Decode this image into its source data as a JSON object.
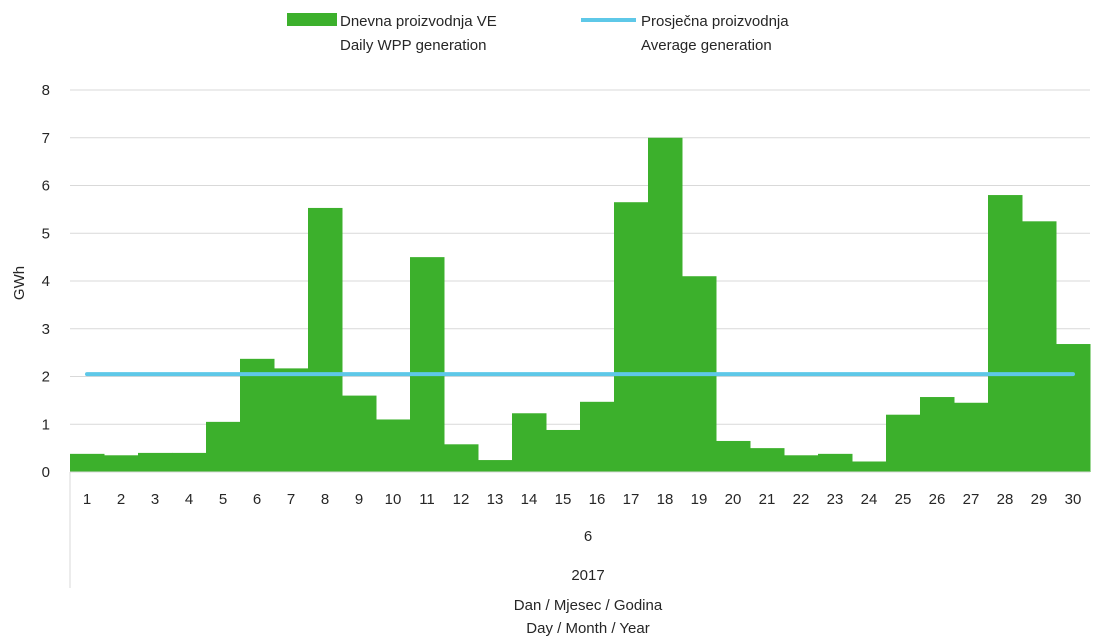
{
  "chart_data": {
    "type": "bar",
    "title": "",
    "ylabel": "GWh",
    "xlabel_lines": [
      "Dan / Mjesec / Godina",
      "Day / Month / Year"
    ],
    "month_label": "6",
    "year_label": "2017",
    "ylim": [
      0,
      8
    ],
    "yticks": [
      "0",
      "1",
      "2",
      "3",
      "4",
      "5",
      "6",
      "7",
      "8"
    ],
    "grid": true,
    "legend_position": "top",
    "categories": [
      "1",
      "2",
      "3",
      "4",
      "5",
      "6",
      "7",
      "8",
      "9",
      "10",
      "11",
      "12",
      "13",
      "14",
      "15",
      "16",
      "17",
      "18",
      "19",
      "20",
      "21",
      "22",
      "23",
      "24",
      "25",
      "26",
      "27",
      "28",
      "29",
      "30"
    ],
    "series": [
      {
        "name_lines": [
          "Dnevna proizvodnja VE",
          "Daily WPP generation"
        ],
        "kind": "bar",
        "color": "#3cb02c",
        "values": [
          0.38,
          0.35,
          0.4,
          0.4,
          1.05,
          2.37,
          2.17,
          5.53,
          1.6,
          1.1,
          4.5,
          0.58,
          0.25,
          1.23,
          0.88,
          1.47,
          5.65,
          7.0,
          4.1,
          0.65,
          0.5,
          0.35,
          0.38,
          0.22,
          1.2,
          1.57,
          1.45,
          5.8,
          5.25,
          2.68
        ]
      },
      {
        "name_lines": [
          "Prosječna proizvodnja",
          "Average generation"
        ],
        "kind": "line",
        "color": "#5ec8e8",
        "value": 2.05
      }
    ]
  }
}
